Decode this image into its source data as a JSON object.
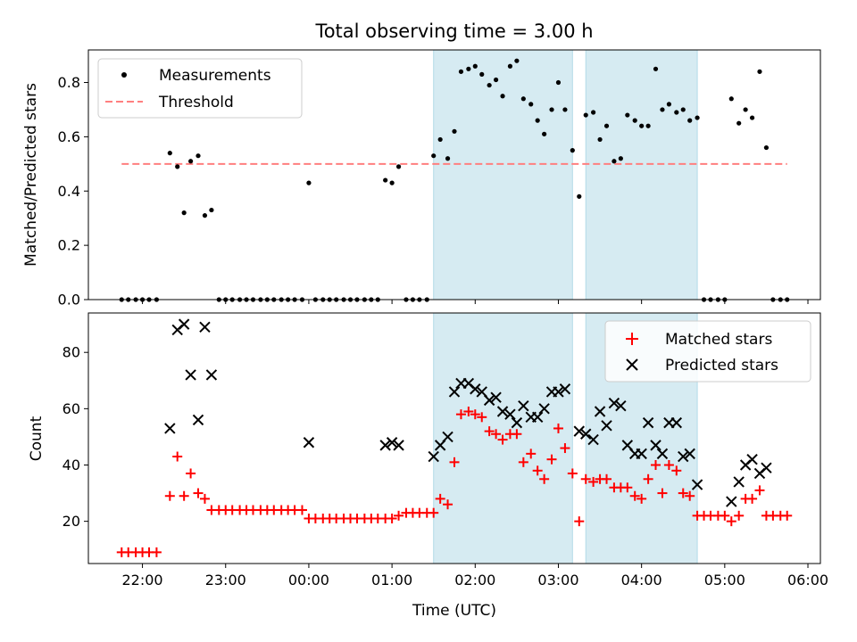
{
  "chart_data": {
    "title": "Total observing time = 3.00 h",
    "xlabel": "Time (UTC)",
    "x_ticks": [
      "22:00",
      "23:00",
      "00:00",
      "01:00",
      "02:00",
      "03:00",
      "04:00",
      "05:00",
      "06:00"
    ],
    "x_tick_hours": [
      22,
      23,
      24,
      25,
      26,
      27,
      28,
      29,
      30
    ],
    "x_range_hours": [
      21.35,
      30.15
    ],
    "shaded_intervals_hours": [
      [
        25.5,
        27.17
      ],
      [
        27.33,
        28.67
      ]
    ],
    "shade_color": "#add8e6",
    "top": {
      "type": "scatter",
      "ylabel": "Matched/Predicted stars",
      "ylim": [
        0,
        0.92
      ],
      "y_ticks": [
        0.0,
        0.2,
        0.4,
        0.6,
        0.8
      ],
      "threshold": {
        "name": "Threshold",
        "value": 0.5,
        "x_range_hours": [
          21.75,
          29.75
        ],
        "color": "#ff7f7f"
      },
      "series": [
        {
          "name": "Measurements",
          "color": "#000000",
          "x": [
            21.75,
            21.83,
            21.92,
            22.0,
            22.08,
            22.17,
            22.33,
            22.42,
            22.5,
            22.58,
            22.67,
            22.75,
            22.83,
            22.92,
            23.0,
            23.08,
            23.17,
            23.25,
            23.33,
            23.42,
            23.5,
            23.58,
            23.67,
            23.75,
            23.83,
            23.92,
            24.0,
            24.08,
            24.17,
            24.25,
            24.33,
            24.42,
            24.5,
            24.58,
            24.67,
            24.75,
            24.83,
            24.92,
            25.0,
            25.08,
            25.17,
            25.25,
            25.33,
            25.42,
            25.5,
            25.58,
            25.67,
            25.75,
            25.83,
            25.92,
            26.0,
            26.08,
            26.17,
            26.25,
            26.33,
            26.42,
            26.5,
            26.58,
            26.67,
            26.75,
            26.83,
            26.92,
            27.0,
            27.08,
            27.17,
            27.25,
            27.33,
            27.42,
            27.5,
            27.58,
            27.67,
            27.75,
            27.83,
            27.92,
            28.0,
            28.08,
            28.17,
            28.25,
            28.33,
            28.42,
            28.5,
            28.58,
            28.67,
            28.75,
            28.83,
            28.92,
            29.0,
            29.08,
            29.17,
            29.25,
            29.33,
            29.42,
            29.5,
            29.58,
            29.67,
            29.75
          ],
          "y": [
            0,
            0,
            0,
            0,
            0,
            0,
            0.54,
            0.49,
            0.32,
            0.51,
            0.53,
            0.31,
            0.33,
            0,
            0,
            0,
            0,
            0,
            0,
            0,
            0,
            0,
            0,
            0,
            0,
            0,
            0.43,
            0,
            0,
            0,
            0,
            0,
            0,
            0,
            0,
            0,
            0,
            0.44,
            0.43,
            0.49,
            0,
            0,
            0,
            0,
            0.53,
            0.59,
            0.52,
            0.62,
            0.84,
            0.85,
            0.86,
            0.83,
            0.79,
            0.81,
            0.75,
            0.86,
            0.88,
            0.74,
            0.72,
            0.66,
            0.61,
            0.7,
            0.8,
            0.7,
            0.55,
            0.38,
            0.68,
            0.69,
            0.59,
            0.64,
            0.51,
            0.52,
            0.68,
            0.66,
            0.64,
            0.64,
            0.85,
            0.7,
            0.72,
            0.69,
            0.7,
            0.66,
            0.67,
            0,
            0,
            0,
            0,
            0.74,
            0.65,
            0.7,
            0.67,
            0.84,
            0.56,
            0,
            0,
            0
          ]
        }
      ],
      "legend": "upper left"
    },
    "bottom": {
      "type": "scatter",
      "ylabel": "Count",
      "ylim": [
        5,
        94
      ],
      "y_ticks": [
        20,
        40,
        60,
        80
      ],
      "legend": "upper right",
      "series": [
        {
          "name": "Matched stars",
          "marker": "+",
          "color": "#ff0000",
          "x": [
            21.75,
            21.83,
            21.92,
            22.0,
            22.08,
            22.17,
            22.33,
            22.42,
            22.5,
            22.58,
            22.67,
            22.75,
            22.83,
            22.92,
            23.0,
            23.08,
            23.17,
            23.25,
            23.33,
            23.42,
            23.5,
            23.58,
            23.67,
            23.75,
            23.83,
            23.92,
            24.0,
            24.08,
            24.17,
            24.25,
            24.33,
            24.42,
            24.5,
            24.58,
            24.67,
            24.75,
            24.83,
            24.92,
            25.0,
            25.08,
            25.17,
            25.25,
            25.33,
            25.42,
            25.5,
            25.58,
            25.67,
            25.75,
            25.83,
            25.92,
            26.0,
            26.08,
            26.17,
            26.25,
            26.33,
            26.42,
            26.5,
            26.58,
            26.67,
            26.75,
            26.83,
            26.92,
            27.0,
            27.08,
            27.17,
            27.25,
            27.33,
            27.42,
            27.5,
            27.58,
            27.67,
            27.75,
            27.83,
            27.92,
            28.0,
            28.08,
            28.17,
            28.25,
            28.33,
            28.42,
            28.5,
            28.58,
            28.67,
            28.75,
            28.83,
            28.92,
            29.0,
            29.08,
            29.17,
            29.25,
            29.33,
            29.42,
            29.5,
            29.58,
            29.67,
            29.75
          ],
          "y": [
            9,
            9,
            9,
            9,
            9,
            9,
            29,
            43,
            29,
            37,
            30,
            28,
            24,
            24,
            24,
            24,
            24,
            24,
            24,
            24,
            24,
            24,
            24,
            24,
            24,
            24,
            21,
            21,
            21,
            21,
            21,
            21,
            21,
            21,
            21,
            21,
            21,
            21,
            21,
            22,
            23,
            23,
            23,
            23,
            23,
            28,
            26,
            41,
            58,
            59,
            58,
            57,
            52,
            51,
            49,
            51,
            51,
            41,
            44,
            38,
            35,
            42,
            53,
            46,
            37,
            20,
            35,
            34,
            35,
            35,
            32,
            32,
            32,
            29,
            28,
            35,
            40,
            30,
            40,
            38,
            30,
            29,
            22,
            22,
            22,
            22,
            22,
            20,
            22,
            28,
            28,
            31,
            22,
            22,
            22,
            22
          ]
        },
        {
          "name": "Predicted stars",
          "marker": "x",
          "color": "#000000",
          "x": [
            22.33,
            22.42,
            22.5,
            22.58,
            22.67,
            22.75,
            22.83,
            24.0,
            24.92,
            25.0,
            25.08,
            25.5,
            25.58,
            25.67,
            25.75,
            25.83,
            25.92,
            26.0,
            26.08,
            26.17,
            26.25,
            26.33,
            26.42,
            26.5,
            26.58,
            26.67,
            26.75,
            26.83,
            26.92,
            27.0,
            27.08,
            27.25,
            27.33,
            27.42,
            27.5,
            27.58,
            27.67,
            27.75,
            27.83,
            27.92,
            28.0,
            28.08,
            28.17,
            28.25,
            28.33,
            28.42,
            28.5,
            28.58,
            28.67,
            29.08,
            29.17,
            29.25,
            29.33,
            29.42,
            29.5
          ],
          "y": [
            53,
            88,
            90,
            72,
            56,
            89,
            72,
            48,
            47,
            48,
            47,
            43,
            47,
            50,
            66,
            69,
            69,
            67,
            66,
            63,
            64,
            59,
            58,
            55,
            61,
            57,
            57,
            60,
            66,
            66,
            67,
            52,
            51,
            49,
            59,
            54,
            62,
            61,
            47,
            44,
            44,
            55,
            47,
            44,
            55,
            55,
            43,
            44,
            33,
            27,
            34,
            40,
            42,
            37,
            39
          ]
        }
      ]
    }
  }
}
